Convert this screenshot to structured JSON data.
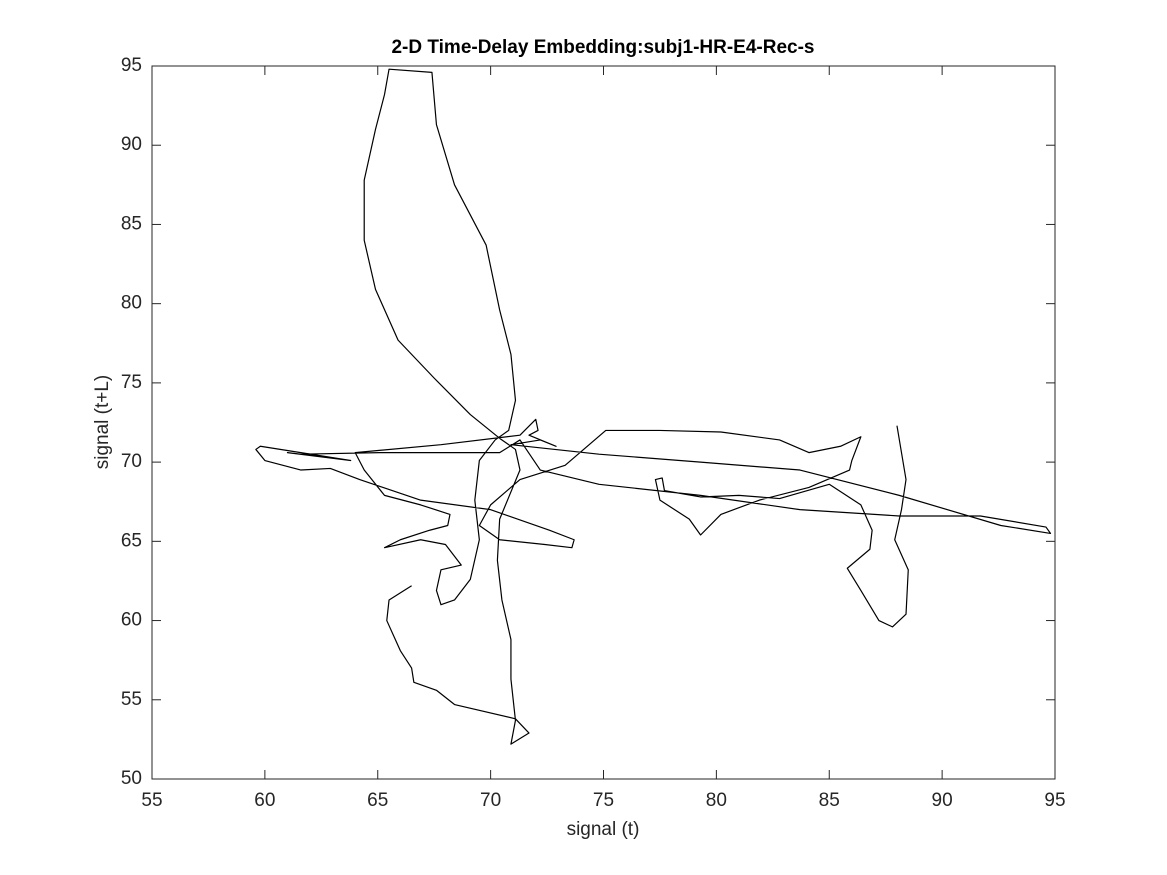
{
  "chart_data": {
    "type": "line",
    "title": "2-D Time-Delay Embedding:subj1-HR-E4-Rec-s",
    "xlabel": "signal (t)",
    "ylabel": "signal (t+L)",
    "color": "#000000",
    "grid": false,
    "xlim": [
      55,
      95
    ],
    "ylim": [
      50,
      95
    ],
    "xticks": [
      55,
      60,
      65,
      70,
      75,
      80,
      85,
      90,
      95
    ],
    "yticks": [
      50,
      55,
      60,
      65,
      70,
      75,
      80,
      85,
      90,
      95
    ],
    "x": [
      66.5,
      65.5,
      65.4,
      66.0,
      66.5,
      66.6,
      67.6,
      68.4,
      71.1,
      71.7,
      70.9,
      71.1,
      70.9,
      70.9,
      70.5,
      70.3,
      70.4,
      71.3,
      71.1,
      70.4,
      69.1,
      67.5,
      65.9,
      64.9,
      64.4,
      64.4,
      64.9,
      65.3,
      65.5,
      67.4,
      67.6,
      68.4,
      69.8,
      70.4,
      70.9,
      71.1,
      70.8,
      70.2,
      69.5,
      69.3,
      69.5,
      69.1,
      68.4,
      67.8,
      67.6,
      67.8,
      68.7,
      68.0,
      66.9,
      65.3,
      66.0,
      67.3,
      68.1,
      68.2,
      66.9,
      65.3,
      64.4,
      64.0,
      67.8,
      71.3,
      72.0,
      72.1,
      71.7,
      72.9,
      72.2,
      70.9,
      74.8,
      79.3,
      83.7,
      88.1,
      92.6,
      94.8,
      94.6,
      91.7,
      88.1,
      83.7,
      79.3,
      74.8,
      72.2,
      71.3,
      70.4,
      65.1,
      61.6,
      61.0,
      63.8,
      59.8,
      59.6,
      60.0,
      61.6,
      62.9,
      64.2,
      66.9,
      70.0,
      72.6,
      73.7,
      73.6,
      72.4,
      70.4,
      69.5,
      70.0,
      71.3,
      73.3,
      75.1,
      77.5,
      80.2,
      82.8,
      84.1,
      85.5,
      86.4,
      86.0,
      85.9,
      84.1,
      81.9,
      80.2,
      79.3,
      78.8,
      77.5,
      77.3,
      77.6,
      77.7,
      79.3,
      81.0,
      82.8,
      85.0,
      86.4,
      86.9,
      86.8,
      85.8,
      86.4,
      87.2,
      87.8,
      88.4,
      88.5,
      87.9,
      88.2,
      88.4,
      88.0
    ],
    "values": [
      62.2,
      61.3,
      60.0,
      58.1,
      57.0,
      56.1,
      55.6,
      54.7,
      53.8,
      52.9,
      52.2,
      53.7,
      56.3,
      58.8,
      61.3,
      63.8,
      66.4,
      69.5,
      70.8,
      71.5,
      73.0,
      75.3,
      77.7,
      80.9,
      84.0,
      87.8,
      91.0,
      93.2,
      94.8,
      94.6,
      91.3,
      87.5,
      83.7,
      79.6,
      76.8,
      73.9,
      72.0,
      71.4,
      70.1,
      67.6,
      65.1,
      62.6,
      61.3,
      61.0,
      61.9,
      63.2,
      63.5,
      64.8,
      65.1,
      64.6,
      65.1,
      65.7,
      66.0,
      66.7,
      67.3,
      67.9,
      69.5,
      70.6,
      71.1,
      71.7,
      72.7,
      72.0,
      71.7,
      71.0,
      71.4,
      71.1,
      70.5,
      70.0,
      69.5,
      67.9,
      66.0,
      65.5,
      65.9,
      66.6,
      66.6,
      67.0,
      67.9,
      68.6,
      69.5,
      71.4,
      70.6,
      70.6,
      70.5,
      70.6,
      70.1,
      71.0,
      70.8,
      70.1,
      69.5,
      69.6,
      68.9,
      67.6,
      67.0,
      65.7,
      65.1,
      64.6,
      64.8,
      65.1,
      66.0,
      67.3,
      68.9,
      69.8,
      72.0,
      72.0,
      71.9,
      71.4,
      70.6,
      71.0,
      71.6,
      70.1,
      69.5,
      68.4,
      67.6,
      66.7,
      65.4,
      66.4,
      67.6,
      68.9,
      69.0,
      68.2,
      67.8,
      67.9,
      67.7,
      68.6,
      67.3,
      65.7,
      64.5,
      63.3,
      61.9,
      60.0,
      59.6,
      60.4,
      63.2,
      65.1,
      67.0,
      68.9,
      72.3
    ]
  }
}
